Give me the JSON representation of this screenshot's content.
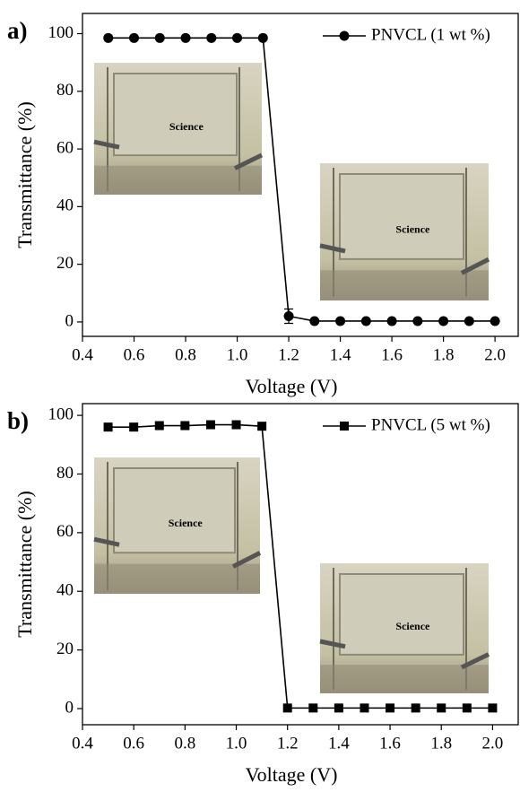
{
  "chart_data": [
    {
      "type": "line",
      "panel_label": "a)",
      "x_label": "Voltage (V)",
      "y_label": "Transmittance (%)",
      "annotation": "Science",
      "xlim": [
        0.4,
        2.09
      ],
      "ylim": [
        -5,
        107
      ],
      "xticks": [
        0.4,
        0.6,
        0.8,
        {
          "value": 1.0,
          "label": "1.0"
        },
        1.2,
        1.4,
        1.6,
        1.8,
        {
          "value": 2.0,
          "label": "2.0"
        }
      ],
      "yticks": [
        0,
        20,
        40,
        60,
        80,
        100
      ],
      "legend": "upper right",
      "marker": "circle",
      "x": [
        0.5,
        0.6,
        0.7,
        0.8,
        0.9,
        1.0,
        1.1,
        1.2,
        1.3,
        1.4,
        1.5,
        1.6,
        1.7,
        1.8,
        1.9,
        2.0
      ],
      "series": [
        {
          "name": "PNVCL (1 wt %)",
          "color": "#000000",
          "values": [
            98.5,
            98.5,
            98.5,
            98.5,
            98.5,
            98.5,
            98.5,
            2,
            0.3,
            0.3,
            0.3,
            0.3,
            0.3,
            0.3,
            0.3,
            0.3
          ],
          "errors": [
            null,
            null,
            null,
            null,
            null,
            null,
            null,
            2.5,
            null,
            null,
            null,
            null,
            null,
            null,
            null,
            null
          ]
        }
      ]
    },
    {
      "type": "line",
      "panel_label": "b)",
      "x_label": "Voltage (V)",
      "y_label": "Transmittance (%)",
      "annotation": "Science",
      "xlim": [
        0.4,
        2.1
      ],
      "ylim": [
        -5.5,
        104
      ],
      "xticks": [
        0.4,
        0.6,
        0.8,
        {
          "value": 1.0,
          "label": "1.0"
        },
        1.2,
        1.4,
        1.6,
        1.8,
        {
          "value": 2.0,
          "label": "2.0"
        }
      ],
      "yticks": [
        0,
        20,
        40,
        60,
        80,
        100
      ],
      "legend": "upper right",
      "marker": "square",
      "x": [
        0.5,
        0.6,
        0.7,
        0.8,
        0.9,
        1.0,
        1.1,
        1.2,
        1.3,
        1.4,
        1.5,
        1.6,
        1.7,
        1.8,
        1.9,
        2.0
      ],
      "series": [
        {
          "name": "PNVCL (5 wt %)",
          "color": "#000000",
          "values": [
            96,
            96,
            96.5,
            96.5,
            96.8,
            96.8,
            96.3,
            0.2,
            0.2,
            0.2,
            0.2,
            0.2,
            0.2,
            0.2,
            0.2,
            0.2
          ]
        }
      ]
    }
  ]
}
